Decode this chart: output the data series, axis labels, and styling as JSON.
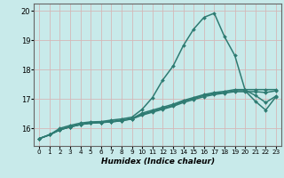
{
  "title": "",
  "xlabel": "Humidex (Indice chaleur)",
  "xlim": [
    -0.5,
    23.5
  ],
  "ylim": [
    15.4,
    20.25
  ],
  "yticks": [
    16,
    17,
    18,
    19,
    20
  ],
  "xticks": [
    0,
    1,
    2,
    3,
    4,
    5,
    6,
    7,
    8,
    9,
    10,
    11,
    12,
    13,
    14,
    15,
    16,
    17,
    18,
    19,
    20,
    21,
    22,
    23
  ],
  "bg_color": "#c8eaea",
  "line_color": "#2e7b72",
  "grid_color": "#d4b8b8",
  "curves": [
    [
      15.65,
      15.78,
      16.0,
      16.1,
      16.18,
      16.22,
      16.23,
      16.28,
      16.32,
      16.38,
      16.65,
      17.05,
      17.65,
      18.12,
      18.82,
      19.38,
      19.78,
      19.92,
      19.12,
      18.48,
      17.3,
      17.12,
      16.88,
      17.1
    ],
    [
      15.65,
      15.78,
      15.95,
      16.05,
      16.13,
      16.18,
      16.2,
      16.22,
      16.26,
      16.32,
      16.45,
      16.55,
      16.65,
      16.75,
      16.88,
      16.98,
      17.08,
      17.15,
      17.2,
      17.25,
      17.25,
      17.25,
      17.22,
      17.28
    ],
    [
      15.65,
      15.78,
      15.95,
      16.05,
      16.13,
      16.18,
      16.2,
      16.22,
      16.26,
      16.32,
      16.48,
      16.58,
      16.68,
      16.78,
      16.92,
      17.02,
      17.12,
      17.18,
      17.22,
      17.28,
      17.28,
      16.92,
      16.62,
      17.08
    ],
    [
      15.65,
      15.78,
      15.95,
      16.05,
      16.13,
      16.18,
      16.2,
      16.23,
      16.28,
      16.33,
      16.52,
      16.62,
      16.72,
      16.82,
      16.95,
      17.05,
      17.15,
      17.22,
      17.26,
      17.32,
      17.32,
      17.32,
      17.32,
      17.32
    ]
  ]
}
